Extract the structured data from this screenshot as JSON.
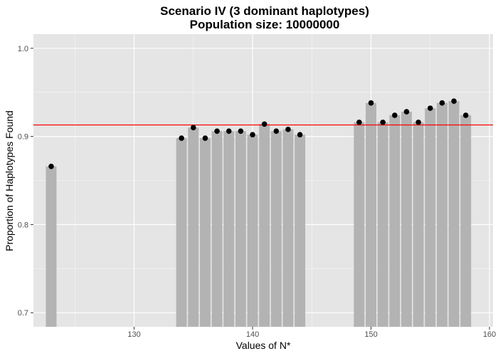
{
  "chart_data": {
    "type": "bar",
    "title_lines": [
      "Scenario IV (3 dominant haplotypes)",
      "Population size: 10000000"
    ],
    "xlabel": "Values of N*",
    "ylabel": "Proportion of Haplotypes Found",
    "xlim": [
      121.5,
      160.3
    ],
    "ylim": [
      0.684,
      1.016
    ],
    "xticks": [
      130,
      140,
      150,
      160
    ],
    "yticks": [
      0.7,
      0.8,
      0.9,
      1.0
    ],
    "xtick_labels": [
      "130",
      "140",
      "150",
      "160"
    ],
    "ytick_labels": [
      "0.7",
      "0.8",
      "0.9",
      "1.0"
    ],
    "reference_line": 0.913,
    "grid": true,
    "series": [
      {
        "type": "bar",
        "color": "#b3b3b3",
        "x": [
          123,
          134,
          135,
          136,
          137,
          138,
          139,
          140,
          141,
          142,
          143,
          144,
          149,
          150,
          151,
          152,
          153,
          154,
          155,
          156,
          157,
          158
        ],
        "values": [
          0.866,
          0.898,
          0.91,
          0.898,
          0.906,
          0.906,
          0.906,
          0.902,
          0.914,
          0.906,
          0.908,
          0.902,
          0.916,
          0.938,
          0.916,
          0.924,
          0.928,
          0.916,
          0.932,
          0.938,
          0.94,
          0.924
        ]
      },
      {
        "type": "point",
        "color": "#000000",
        "x": [
          123,
          134,
          135,
          136,
          137,
          138,
          139,
          140,
          141,
          142,
          143,
          144,
          149,
          150,
          151,
          152,
          153,
          154,
          155,
          156,
          157,
          158
        ],
        "values": [
          0.866,
          0.898,
          0.91,
          0.898,
          0.906,
          0.906,
          0.906,
          0.902,
          0.914,
          0.906,
          0.908,
          0.902,
          0.916,
          0.938,
          0.916,
          0.924,
          0.928,
          0.916,
          0.932,
          0.938,
          0.94,
          0.924
        ]
      }
    ],
    "colors": {
      "panel": "#e5e5e5",
      "grid_major": "#ffffff",
      "reference_line": "#ff0000",
      "tick": "#333333"
    }
  }
}
